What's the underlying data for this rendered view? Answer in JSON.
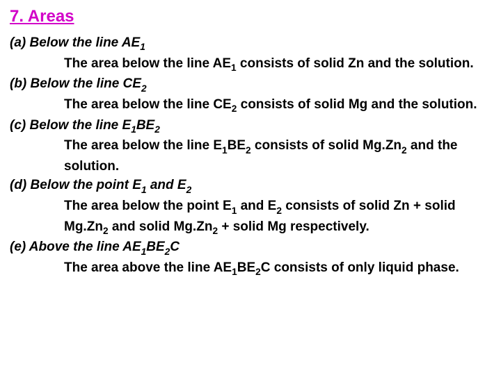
{
  "heading": "7. Areas",
  "items": {
    "a": {
      "label_pre": "(a) Below the line AE",
      "label_sub": "1",
      "body_pre": "The area below the line AE",
      "body_sub": "1",
      "body_post": " consists of solid Zn and the solution."
    },
    "b": {
      "label_pre": "(b) Below the line CE",
      "label_sub": "2",
      "body_pre": "The area below the line CE",
      "body_sub": "2",
      "body_post": " consists of solid Mg and the solution."
    },
    "c": {
      "label_pre": "(c) Below the line E",
      "label_sub1": "1",
      "label_mid": "BE",
      "label_sub2": "2",
      "body_pre": "The area below the line E",
      "body_sub1": "1",
      "body_mid": "BE",
      "body_sub2": "2",
      "body_post": " consists of solid Mg.Zn",
      "body_sub3": "2",
      "body_end": " and the solution."
    },
    "d": {
      "label_pre": "(d) Below the point E",
      "label_sub1": "1",
      "label_mid": " and E",
      "label_sub2": "2",
      "body_pre": "The area below the point E",
      "body_sub1": "1",
      "body_mid": " and E",
      "body_sub2": "2",
      "body_post1": " consists of solid Zn + solid Mg.Zn",
      "body_sub3": "2",
      "body_post2": " and solid Mg.Zn",
      "body_sub4": "2",
      "body_end": " + solid Mg respectively."
    },
    "e": {
      "label_pre": "(e) Above the line AE",
      "label_sub1": "1",
      "label_mid": "BE",
      "label_sub2": "2",
      "label_end": "C",
      "body_pre": "The area above the line AE",
      "body_sub1": "1",
      "body_mid": "BE",
      "body_sub2": "2",
      "body_post": "C",
      "body_end": " consists of only liquid phase."
    }
  }
}
